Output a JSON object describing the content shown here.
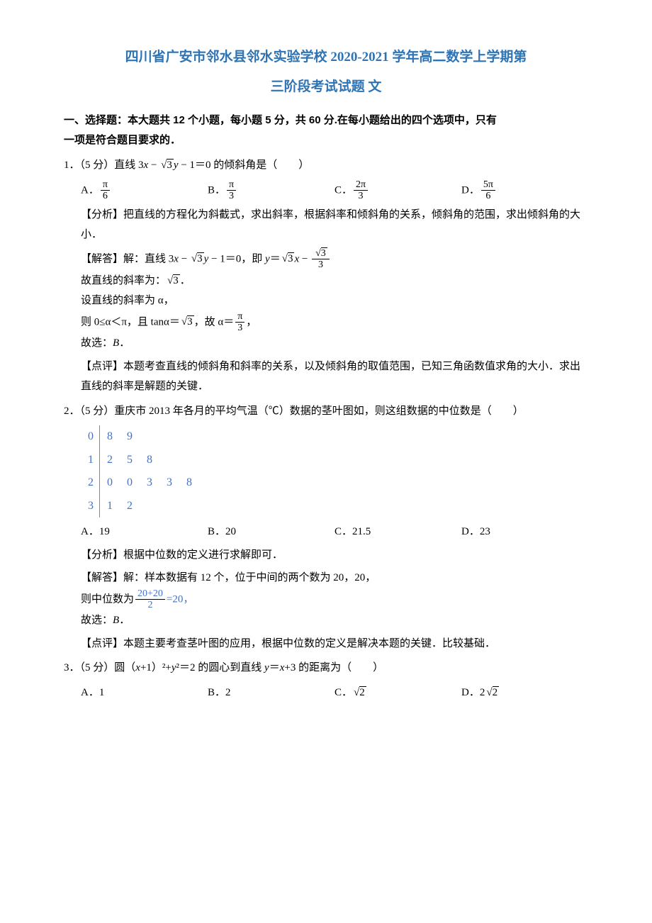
{
  "title_line1": "四川省广安市邻水县邻水实验学校 2020-2021 学年高二数学上学期第",
  "title_line2": "三阶段考试试题 文",
  "section_header_l1": "一、选择题：本大题共 12 个小题，每小题 5 分，共 60 分.在每小题给出的四个选项中，只有",
  "section_header_l2": "一项是符合题目要求的．",
  "q1": {
    "stem_prefix": "1．（5 分）直线 3",
    "stem_mid1": " − ",
    "stem_mid2": " − 1＝0 的倾斜角是（　　）",
    "optA_label": "A．",
    "optA_num": "π",
    "optA_den": "6",
    "optB_label": "B．",
    "optB_num": "π",
    "optB_den": "3",
    "optC_label": "C．",
    "optC_num": "2π",
    "optC_den": "3",
    "optD_label": "D．",
    "optD_num": "5π",
    "optD_den": "6",
    "analysis": "【分析】把直线的方程化为斜截式，求出斜率，根据斜率和倾斜角的关系，倾斜角的范围，求出倾斜角的大小．",
    "sol_l1a": "【解答】解：直线 3",
    "sol_l1b": " − ",
    "sol_l1c": " − 1＝0，即 ",
    "sol_l1d": "＝",
    "sol_l1e": " − ",
    "sol_frac_num": "3",
    "sol_frac_den": "3",
    "sol_l2a": "故直线的斜率为：",
    "sol_l2b": "．",
    "sol_l3": "设直线的斜率为 α，",
    "sol_l4a": "则 0≤α＜π，且 tanα＝",
    "sol_l4b": "，故 α＝",
    "sol_l4_num": "π",
    "sol_l4_den": "3",
    "sol_l4c": "，",
    "sol_l5": "故选：B．",
    "comment": "【点评】本题考查直线的倾斜角和斜率的关系，以及倾斜角的取值范围，已知三角函数值求角的大小．求出直线的斜率是解题的关键．"
  },
  "q2": {
    "stem": "2．（5 分）重庆市 2013 年各月的平均气温（℃）数据的茎叶图如，则这组数据的中位数是（　　）",
    "stemleaf": [
      {
        "stem": "0",
        "leaves": [
          "8",
          "9",
          "",
          "",
          ""
        ]
      },
      {
        "stem": "1",
        "leaves": [
          "2",
          "5",
          "8",
          "",
          ""
        ]
      },
      {
        "stem": "2",
        "leaves": [
          "0",
          "0",
          "3",
          "3",
          "8"
        ]
      },
      {
        "stem": "3",
        "leaves": [
          "1",
          "2",
          "",
          "",
          ""
        ]
      }
    ],
    "optA": "A．19",
    "optB": "B．20",
    "optC": "C．21.5",
    "optD": "D．23",
    "analysis": "【分析】根据中位数的定义进行求解即可．",
    "sol_l1": "【解答】解：样本数据有 12 个，位于中间的两个数为 20，20，",
    "sol_l2a": "则中位数为",
    "sol_frac_num": "20+20",
    "sol_frac_den": "2",
    "sol_l2b": "=20，",
    "sol_l3": "故选：B．",
    "comment": "【点评】本题主要考查茎叶图的应用，根据中位数的定义是解决本题的关键．比较基础．"
  },
  "q3": {
    "stem_a": "3．（5 分）圆（",
    "stem_b": "+1）²+",
    "stem_c": "²＝2 的圆心到直线 ",
    "stem_d": "＝",
    "stem_e": "+3 的距离为（　　）",
    "optA": "A．1",
    "optB": "B．2",
    "optC_label": "C．",
    "optC_rad": "2",
    "optD_label": "D．2",
    "optD_rad": "2"
  },
  "vars": {
    "x": "x",
    "y": "y",
    "sqrt3": "3"
  }
}
